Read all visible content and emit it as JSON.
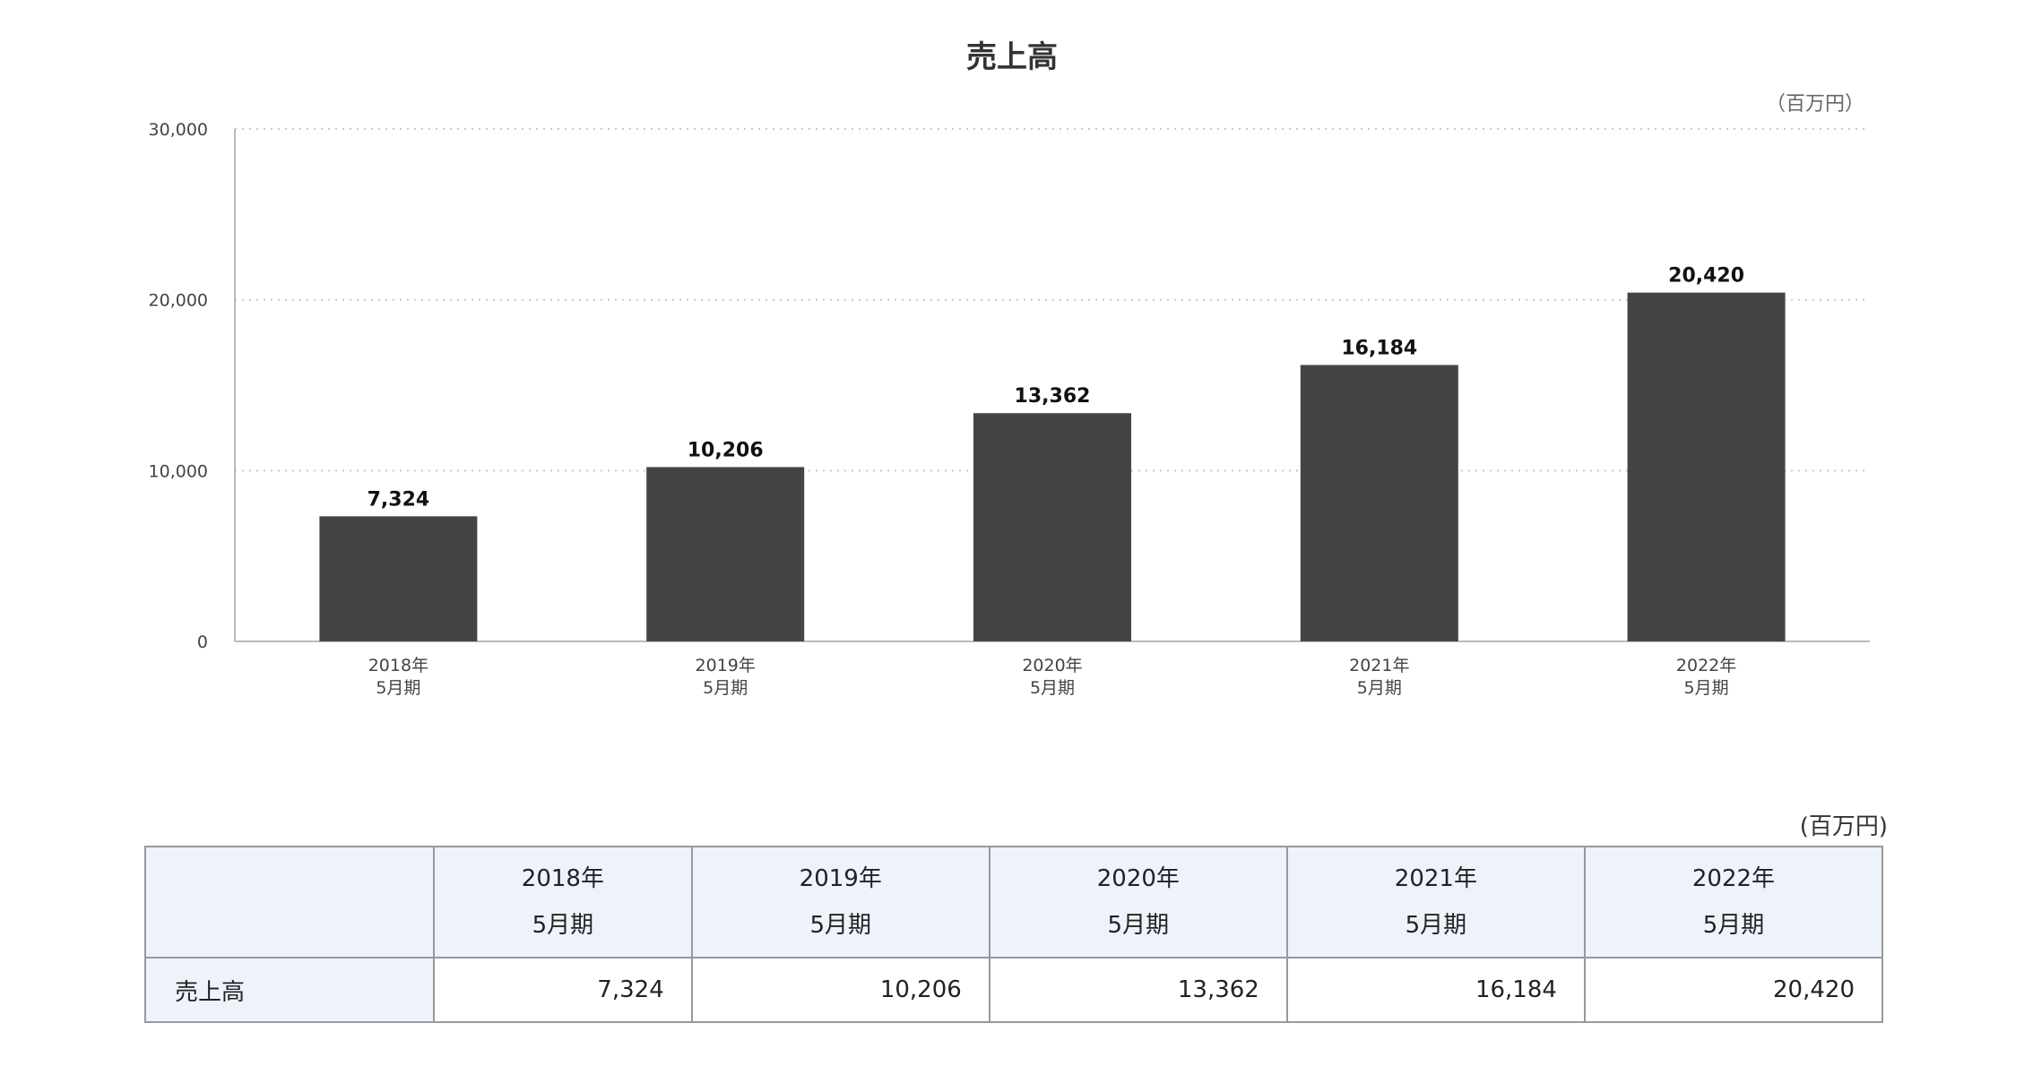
{
  "chart_data": {
    "type": "bar",
    "title": "売上高",
    "unit_label": "（百万円）",
    "categories": [
      {
        "line1": "2018年",
        "line2": "5月期"
      },
      {
        "line1": "2019年",
        "line2": "5月期"
      },
      {
        "line1": "2020年",
        "line2": "5月期"
      },
      {
        "line1": "2021年",
        "line2": "5月期"
      },
      {
        "line1": "2022年",
        "line2": "5月期"
      }
    ],
    "values": [
      7324,
      10206,
      13362,
      16184,
      20420
    ],
    "value_labels": [
      "7,324",
      "10,206",
      "13,362",
      "16,184",
      "20,420"
    ],
    "ylim": [
      0,
      30000
    ],
    "yticks": [
      0,
      10000,
      20000,
      30000
    ],
    "ytick_labels": [
      "0",
      "10,000",
      "20,000",
      "30,000"
    ],
    "grid": true,
    "bar_color": "#444444"
  },
  "table": {
    "unit_label": "(百万円)",
    "headers": [
      {
        "line1": "2018年",
        "line2": "5月期"
      },
      {
        "line1": "2019年",
        "line2": "5月期"
      },
      {
        "line1": "2020年",
        "line2": "5月期"
      },
      {
        "line1": "2021年",
        "line2": "5月期"
      },
      {
        "line1": "2022年",
        "line2": "5月期"
      }
    ],
    "row_label": "売上高",
    "cells": [
      "7,324",
      "10,206",
      "13,362",
      "16,184",
      "20,420"
    ]
  }
}
